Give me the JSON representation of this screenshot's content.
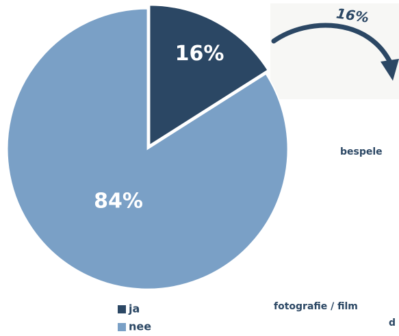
{
  "chart_data": {
    "type": "pie",
    "categories": [
      "ja",
      "nee"
    ],
    "values": [
      16,
      84
    ],
    "value_labels": [
      "16%",
      "84%"
    ],
    "colors": [
      "#2b4764",
      "#7aa0c6"
    ],
    "legend": "bottom",
    "annotations": [
      {
        "text": "16%"
      },
      {
        "text": "bespele"
      },
      {
        "text": "fotografie / film"
      },
      {
        "text": "d"
      }
    ]
  }
}
